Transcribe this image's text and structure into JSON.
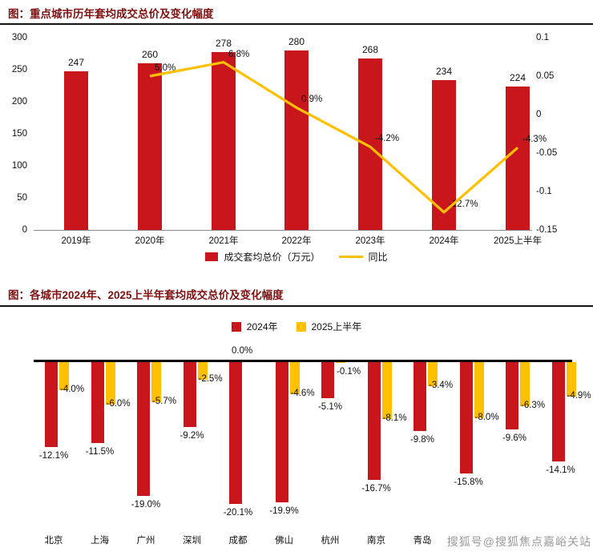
{
  "watermark": "搜狐号@搜狐焦点嘉峪关站",
  "colors": {
    "bar_red": "#C9161C",
    "line_yellow": "#FFC000"
  },
  "chart1": {
    "title": "图：重点城市历年套均成交总价及变化幅度",
    "legend": {
      "bar_label": "成交套均总价（万元）",
      "line_label": "同比"
    }
  },
  "chart2": {
    "title": "图：各城市2024年、2025上半年套均成交总价及变化幅度",
    "legend": {
      "s1": "2024年",
      "s2": "2025上半年"
    }
  },
  "chart_data": [
    {
      "type": "bar",
      "title": "重点城市历年套均成交总价及变化幅度",
      "categories": [
        "2019年",
        "2020年",
        "2021年",
        "2022年",
        "2023年",
        "2024年",
        "2025上半年"
      ],
      "series": [
        {
          "name": "成交套均总价（万元）",
          "type": "bar",
          "color": "#C9161C",
          "axis": "left",
          "values": [
            247,
            260,
            278,
            280,
            268,
            234,
            224
          ]
        },
        {
          "name": "同比",
          "type": "line",
          "color": "#FFC000",
          "axis": "right",
          "values": [
            null,
            0.05,
            0.068,
            0.009,
            -0.042,
            -0.127,
            -0.043
          ],
          "point_labels": [
            "",
            "5.0%",
            "6.8%",
            "0.9%",
            "-4.2%",
            "-12.7%",
            "-4.3%"
          ]
        }
      ],
      "left_axis": {
        "min": 0,
        "max": 300,
        "ticks": [
          0,
          50,
          100,
          150,
          200,
          250,
          300
        ]
      },
      "right_axis": {
        "min": -0.15,
        "max": 0.1,
        "tick_values": [
          0.1,
          0.05,
          0,
          -0.05,
          -0.1,
          -0.15
        ],
        "tick_labels": [
          "0.1",
          "0.05",
          "0",
          "-0.05",
          "-0.1",
          "-0.15"
        ]
      },
      "grid": false,
      "legend_position": "bottom"
    },
    {
      "type": "bar",
      "title": "各城市2024年、2025上半年套均成交总价及变化幅度",
      "categories": [
        "北京",
        "上海",
        "广州",
        "深圳",
        "成都",
        "佛山",
        "杭州",
        "南京",
        "青岛",
        "",
        "",
        ""
      ],
      "series": [
        {
          "name": "2024年",
          "color": "#C9161C",
          "values": [
            -12.1,
            -11.5,
            -19.0,
            -9.2,
            -20.1,
            -19.9,
            -5.1,
            -16.7,
            -9.8,
            -15.8,
            -9.6,
            -14.1
          ],
          "labels": [
            "-12.1%",
            "-11.5%",
            "-19.0%",
            "-9.2%",
            "-20.1%",
            "-19.9%",
            "-5.1%",
            "-16.7%",
            "-9.8%",
            "-15.8%",
            "-9.6%",
            "-14.1%"
          ]
        },
        {
          "name": "2025上半年",
          "color": "#FFC000",
          "values": [
            -4.0,
            -6.0,
            -5.7,
            -2.5,
            0.0,
            -4.6,
            -0.1,
            -8.1,
            -3.4,
            -8.0,
            -6.3,
            -4.9
          ],
          "labels": [
            "-4.0%",
            "-6.0%",
            "-5.7%",
            "-2.5%",
            "0.0%",
            "-4.6%",
            "-0.1%",
            "-8.1%",
            "-3.4%",
            "-8.0%",
            "-6.3%",
            "-4.9%"
          ]
        }
      ],
      "ylim": [
        -22,
        0
      ],
      "grid": false,
      "legend_position": "top"
    }
  ]
}
